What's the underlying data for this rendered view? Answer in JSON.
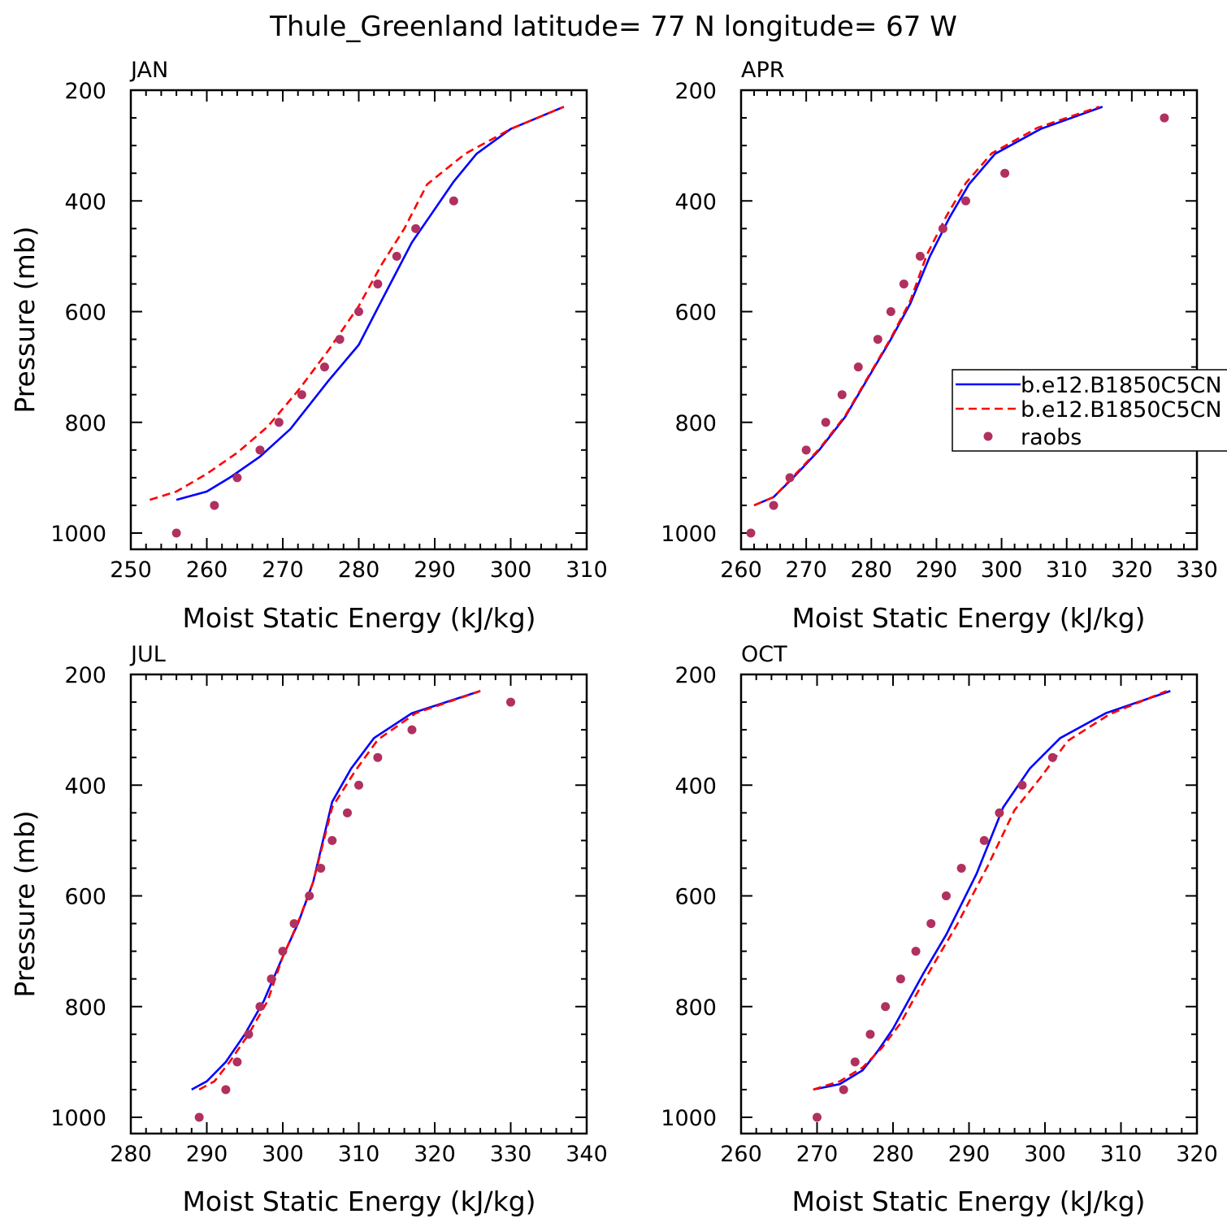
{
  "page": {
    "title": "Thule_Greenland  latitude= 77 N longitude= 67 W"
  },
  "colors": {
    "model_a": "#0000ff",
    "model_b": "#ff0000",
    "raobs": "#b03060",
    "axis": "#000000"
  },
  "legend": {
    "entries": [
      "b.e12.B1850C5CN",
      "b.e12.B1850C5CN",
      "raobs"
    ]
  },
  "chart_data": [
    {
      "type": "line",
      "panel_label": "JAN",
      "xlabel": "Moist Static Energy (kJ/kg)",
      "ylabel": "Pressure (mb)",
      "xlim": [
        250,
        310
      ],
      "ylim": [
        1000,
        200
      ],
      "xticks": [
        250,
        260,
        270,
        280,
        290,
        300,
        310
      ],
      "yticks": [
        200,
        400,
        600,
        800,
        1000
      ],
      "series": [
        {
          "name": "b.e12.B1850C5CN",
          "style": "solid",
          "x": [
            256,
            260,
            263,
            267,
            271,
            276,
            280,
            283,
            287,
            289.5,
            292.5,
            295.5,
            300,
            307
          ],
          "y": [
            940,
            925,
            900,
            862,
            812,
            725,
            660,
            580,
            475,
            425,
            365,
            315,
            270,
            230
          ]
        },
        {
          "name": "b.e12.B1850C5CN",
          "style": "dashed",
          "x": [
            252.5,
            256,
            260,
            264,
            268,
            272,
            276,
            280,
            283,
            286,
            289,
            294,
            300,
            307
          ],
          "y": [
            940,
            925,
            893,
            855,
            808,
            743,
            670,
            590,
            515,
            450,
            370,
            315,
            270,
            230
          ]
        },
        {
          "name": "raobs",
          "style": "points",
          "x": [
            256,
            261,
            264,
            267,
            269.5,
            272.5,
            275.5,
            277.5,
            280,
            282.5,
            285,
            287.5,
            292.5
          ],
          "y": [
            1000,
            950,
            900,
            850,
            800,
            750,
            700,
            650,
            600,
            550,
            500,
            450,
            400
          ]
        }
      ]
    },
    {
      "type": "line",
      "panel_label": "APR",
      "xlabel": "Moist Static Energy (kJ/kg)",
      "ylabel": "",
      "xlim": [
        260,
        330
      ],
      "ylim": [
        1000,
        200
      ],
      "xticks": [
        260,
        270,
        280,
        290,
        300,
        310,
        320,
        330
      ],
      "yticks": [
        200,
        400,
        600,
        800,
        1000
      ],
      "series": [
        {
          "name": "b.e12.B1850C5CN",
          "style": "solid",
          "x": [
            262,
            265,
            268,
            272,
            276,
            280,
            283,
            286,
            289,
            292,
            295,
            299,
            306,
            315.5
          ],
          "y": [
            950,
            935,
            900,
            850,
            790,
            710,
            650,
            585,
            500,
            430,
            370,
            315,
            270,
            230
          ]
        },
        {
          "name": "b.e12.B1850C5CN",
          "style": "dashed",
          "x": [
            262,
            265,
            268,
            272,
            276,
            280,
            283,
            286,
            288.5,
            291.5,
            294.5,
            298.5,
            305.5,
            315
          ],
          "y": [
            950,
            935,
            898,
            848,
            788,
            708,
            648,
            580,
            498,
            428,
            368,
            314,
            268,
            230
          ]
        },
        {
          "name": "raobs",
          "style": "points",
          "x": [
            261.5,
            265,
            267.5,
            270,
            273,
            275.5,
            278,
            281,
            283,
            285,
            287.5,
            291,
            294.5,
            300.5,
            325
          ],
          "y": [
            1000,
            950,
            900,
            850,
            800,
            750,
            700,
            650,
            600,
            550,
            500,
            450,
            400,
            350,
            250
          ]
        }
      ]
    },
    {
      "type": "line",
      "panel_label": "JUL",
      "xlabel": "Moist Static Energy (kJ/kg)",
      "ylabel": "Pressure (mb)",
      "xlim": [
        280,
        340
      ],
      "ylim": [
        1000,
        200
      ],
      "xticks": [
        280,
        290,
        300,
        310,
        320,
        330,
        340
      ],
      "yticks": [
        200,
        400,
        600,
        800,
        1000
      ],
      "series": [
        {
          "name": "b.e12.B1850C5CN",
          "style": "solid",
          "x": [
            288,
            290,
            292.5,
            295,
            297.5,
            300,
            302,
            304,
            306.5,
            309,
            312,
            317,
            326
          ],
          "y": [
            950,
            935,
            900,
            850,
            790,
            710,
            650,
            575,
            430,
            370,
            315,
            270,
            230
          ]
        },
        {
          "name": "b.e12.B1850C5CN",
          "style": "dashed",
          "x": [
            289,
            291,
            293,
            295.5,
            298,
            300,
            302,
            304,
            306.5,
            309.5,
            312.5,
            317.5,
            326
          ],
          "y": [
            950,
            935,
            900,
            850,
            790,
            710,
            648,
            575,
            440,
            375,
            318,
            270,
            230
          ]
        },
        {
          "name": "raobs",
          "style": "points",
          "x": [
            289,
            292.5,
            294,
            295.5,
            297,
            298.5,
            300,
            301.5,
            303.5,
            305,
            306.5,
            308.5,
            310,
            312.5,
            317,
            330
          ],
          "y": [
            1000,
            950,
            900,
            850,
            800,
            750,
            700,
            650,
            600,
            550,
            500,
            450,
            400,
            350,
            300,
            250
          ]
        }
      ]
    },
    {
      "type": "line",
      "panel_label": "OCT",
      "xlabel": "Moist Static Energy (kJ/kg)",
      "ylabel": "",
      "xlim": [
        260,
        320
      ],
      "ylim": [
        1000,
        200
      ],
      "xticks": [
        260,
        270,
        280,
        290,
        300,
        310,
        320
      ],
      "yticks": [
        200,
        400,
        600,
        800,
        1000
      ],
      "series": [
        {
          "name": "b.e12.B1850C5CN",
          "style": "solid",
          "x": [
            269.5,
            273,
            276,
            278,
            280,
            282,
            284,
            287,
            291,
            294.5,
            298,
            302,
            308,
            316.5
          ],
          "y": [
            950,
            940,
            915,
            880,
            840,
            790,
            740,
            670,
            560,
            440,
            370,
            315,
            270,
            230
          ]
        },
        {
          "name": "b.e12.B1850C5CN",
          "style": "dashed",
          "x": [
            269.5,
            273,
            276,
            278.5,
            281,
            283,
            285.5,
            288.5,
            292.5,
            296,
            299.5,
            303,
            308.5,
            316
          ],
          "y": [
            950,
            935,
            910,
            875,
            830,
            780,
            720,
            650,
            545,
            445,
            385,
            320,
            272,
            230
          ]
        },
        {
          "name": "raobs",
          "style": "points",
          "x": [
            270,
            273.5,
            275,
            277,
            279,
            281,
            283,
            285,
            287,
            289,
            292,
            294,
            297,
            301
          ],
          "y": [
            1000,
            950,
            900,
            850,
            800,
            750,
            700,
            650,
            600,
            550,
            500,
            450,
            400,
            350
          ]
        }
      ]
    }
  ]
}
